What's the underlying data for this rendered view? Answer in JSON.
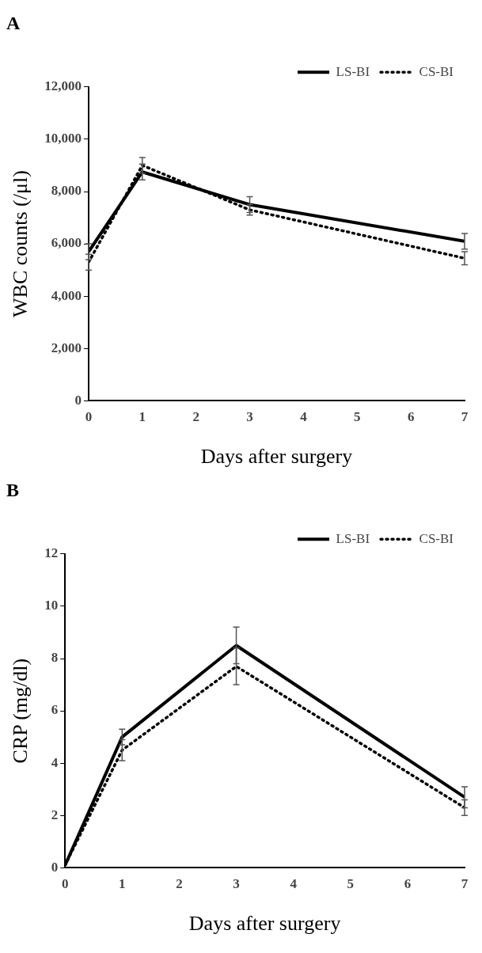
{
  "chart_data": [
    {
      "type": "line",
      "title": "A",
      "xlabel": "Days after surgery",
      "ylabel": "WBC counts (/μl)",
      "x": [
        0,
        1,
        3,
        7
      ],
      "xlim": [
        0,
        7
      ],
      "xticks": [
        0,
        1,
        2,
        3,
        4,
        5,
        6,
        7
      ],
      "ylim": [
        0,
        12000
      ],
      "yticks": [
        {
          "value": 0,
          "label": "0"
        },
        {
          "value": 2000,
          "label": "2,000"
        },
        {
          "value": 4000,
          "label": "4,000"
        },
        {
          "value": 6000,
          "label": "6,000"
        },
        {
          "value": 8000,
          "label": "8,000"
        },
        {
          "value": 10000,
          "label": "10,000"
        },
        {
          "value": 12000,
          "label": "12,000"
        }
      ],
      "grid": false,
      "legend": "top right",
      "marker": "none",
      "series": [
        {
          "name": "LS-BI",
          "color": "#000000",
          "line_style": "solid",
          "values": [
            5700,
            8750,
            7500,
            6100
          ],
          "errors": [
            300,
            300,
            300,
            300
          ]
        },
        {
          "name": "CS-BI",
          "color": "#000000",
          "line_style": "dotted",
          "values": [
            5300,
            9000,
            7300,
            5450
          ],
          "errors": [
            300,
            300,
            200,
            250
          ]
        }
      ]
    },
    {
      "type": "line",
      "title": "B",
      "xlabel": "Days after surgery",
      "ylabel": "CRP (mg/dl)",
      "x": [
        0,
        1,
        3,
        7
      ],
      "xlim": [
        0,
        7
      ],
      "xticks": [
        0,
        1,
        2,
        3,
        4,
        5,
        6,
        7
      ],
      "ylim": [
        0,
        12
      ],
      "yticks": [
        0,
        2,
        4,
        6,
        8,
        10,
        12
      ],
      "grid": false,
      "legend": "top right",
      "marker": "none",
      "series": [
        {
          "name": "LS-BI",
          "color": "#000000",
          "line_style": "solid",
          "values": [
            0.1,
            5.0,
            8.5,
            2.7
          ],
          "errors": [
            null,
            0.3,
            0.7,
            0.4
          ]
        },
        {
          "name": "CS-BI",
          "color": "#000000",
          "line_style": "dotted",
          "values": [
            0.1,
            4.5,
            7.7,
            2.3
          ],
          "errors": [
            null,
            0.4,
            0.7,
            0.3
          ]
        }
      ]
    }
  ]
}
